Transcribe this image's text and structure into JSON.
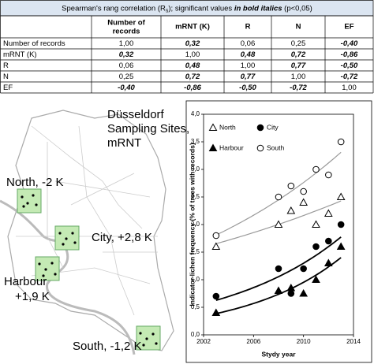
{
  "table": {
    "title": [
      "Spearman's rang correlation (R",
      "s",
      "); significant values ",
      "in bold italics",
      " (p<0,05)"
    ],
    "header": [
      "Number of records",
      "mRNT (K)",
      "R",
      "N",
      "EF"
    ],
    "rows": [
      {
        "label": "Number of records",
        "values": [
          "1,00",
          "0,32",
          "0,06",
          "0,25",
          "-0,40"
        ],
        "significant": [
          false,
          true,
          false,
          false,
          true
        ]
      },
      {
        "label": "mRNT (K)",
        "values": [
          "0,32",
          "1,00",
          "0,48",
          "0,72",
          "-0,86"
        ],
        "significant": [
          true,
          false,
          true,
          true,
          true
        ]
      },
      {
        "label": "R",
        "values": [
          "0,06",
          "0,48",
          "1,00",
          "0,77",
          "-0,50"
        ],
        "significant": [
          false,
          true,
          false,
          true,
          true
        ]
      },
      {
        "label": "N",
        "values": [
          "0,25",
          "0,72",
          "0,77",
          "1,00",
          "-0,72"
        ],
        "significant": [
          false,
          true,
          true,
          false,
          true
        ]
      },
      {
        "label": "EF",
        "values": [
          "-0,40",
          "-0,86",
          "-0,50",
          "-0,72",
          "1,00"
        ],
        "significant": [
          true,
          true,
          true,
          true,
          false
        ]
      }
    ]
  },
  "map": {
    "title": [
      "Düsseldorf",
      "Sampling Sites,",
      "mRNT"
    ],
    "sites": [
      {
        "label": [
          "North, -2 K"
        ]
      },
      {
        "label": [
          "City, +2,8 K"
        ]
      },
      {
        "label": [
          "Harbour",
          "+1,9 K"
        ]
      },
      {
        "label": [
          "South, -1,2 K"
        ]
      }
    ]
  },
  "chart_data": {
    "type": "scatter",
    "x_label": "Stydy year",
    "y_label": "Indicator lichen frequency (% of trees with records)",
    "xlim": [
      2002,
      2014
    ],
    "xticks": [
      2002,
      2006,
      2010,
      2014
    ],
    "ylim": [
      0,
      4
    ],
    "yticks": [
      {
        "value": 0,
        "label": "0,0"
      },
      {
        "value": 0.5,
        "label": "0,5"
      },
      {
        "value": 1,
        "label": "1,0"
      },
      {
        "value": 1.5,
        "label": "1,5"
      },
      {
        "value": 2,
        "label": "2,0"
      },
      {
        "value": 2.5,
        "label": "2,5"
      },
      {
        "value": 3,
        "label": "3,0"
      },
      {
        "value": 3.5,
        "label": "3,5"
      },
      {
        "value": 4,
        "label": "4,0"
      }
    ],
    "x": [
      2003,
      2008,
      2009,
      2010,
      2011,
      2012,
      2013
    ],
    "series": [
      {
        "name": "North",
        "marker": "triangle-open",
        "color": "#000000",
        "trend_color": "#999999",
        "values": [
          1.6,
          2.0,
          2.25,
          2.4,
          2.0,
          2.2,
          2.5
        ]
      },
      {
        "name": "City",
        "marker": "circle-filled",
        "color": "#000000",
        "trend_color": "#000000",
        "values": [
          0.7,
          1.2,
          0.75,
          1.2,
          1.6,
          1.7,
          2.0
        ]
      },
      {
        "name": "Harbour",
        "marker": "triangle-filled",
        "color": "#000000",
        "trend_color": "#000000",
        "values": [
          0.4,
          0.8,
          0.85,
          0.75,
          1.0,
          1.3,
          1.6
        ]
      },
      {
        "name": "South",
        "marker": "circle-open",
        "color": "#000000",
        "trend_color": "#999999",
        "values": [
          1.8,
          2.5,
          2.7,
          2.6,
          3.0,
          2.9,
          3.5
        ]
      }
    ]
  }
}
